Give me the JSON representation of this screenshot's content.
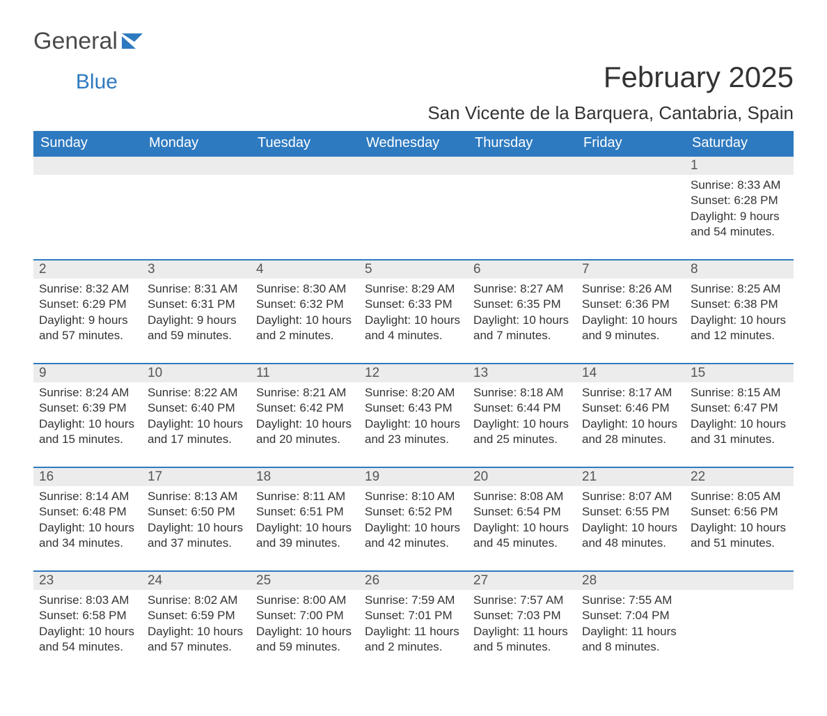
{
  "brand": {
    "word1": "General",
    "word2": "Blue",
    "word1_color": "#4a4a4a",
    "word2_color": "#2e7ac0",
    "flag_color": "#2e7ac0"
  },
  "header": {
    "month_title": "February 2025",
    "location": "San Vicente de la Barquera, Cantabria, Spain"
  },
  "styling": {
    "header_bg": "#2e7ac0",
    "header_fg": "#ffffff",
    "daynum_bg": "#ececec",
    "daynum_fg": "#555555",
    "week_separator": "#2e7ac0",
    "body_text": "#333333",
    "page_bg": "#ffffff",
    "th_fontsize": 20,
    "title_fontsize": 42,
    "location_fontsize": 26,
    "detail_fontsize": 17
  },
  "weekdays": [
    "Sunday",
    "Monday",
    "Tuesday",
    "Wednesday",
    "Thursday",
    "Friday",
    "Saturday"
  ],
  "labels": {
    "sunrise": "Sunrise:",
    "sunset": "Sunset:",
    "daylight": "Daylight:"
  },
  "weeks": [
    [
      null,
      null,
      null,
      null,
      null,
      null,
      {
        "n": "1",
        "sunrise": "8:33 AM",
        "sunset": "6:28 PM",
        "daylight1": "9 hours",
        "daylight2": "and 54 minutes."
      }
    ],
    [
      {
        "n": "2",
        "sunrise": "8:32 AM",
        "sunset": "6:29 PM",
        "daylight1": "9 hours",
        "daylight2": "and 57 minutes."
      },
      {
        "n": "3",
        "sunrise": "8:31 AM",
        "sunset": "6:31 PM",
        "daylight1": "9 hours",
        "daylight2": "and 59 minutes."
      },
      {
        "n": "4",
        "sunrise": "8:30 AM",
        "sunset": "6:32 PM",
        "daylight1": "10 hours",
        "daylight2": "and 2 minutes."
      },
      {
        "n": "5",
        "sunrise": "8:29 AM",
        "sunset": "6:33 PM",
        "daylight1": "10 hours",
        "daylight2": "and 4 minutes."
      },
      {
        "n": "6",
        "sunrise": "8:27 AM",
        "sunset": "6:35 PM",
        "daylight1": "10 hours",
        "daylight2": "and 7 minutes."
      },
      {
        "n": "7",
        "sunrise": "8:26 AM",
        "sunset": "6:36 PM",
        "daylight1": "10 hours",
        "daylight2": "and 9 minutes."
      },
      {
        "n": "8",
        "sunrise": "8:25 AM",
        "sunset": "6:38 PM",
        "daylight1": "10 hours",
        "daylight2": "and 12 minutes."
      }
    ],
    [
      {
        "n": "9",
        "sunrise": "8:24 AM",
        "sunset": "6:39 PM",
        "daylight1": "10 hours",
        "daylight2": "and 15 minutes."
      },
      {
        "n": "10",
        "sunrise": "8:22 AM",
        "sunset": "6:40 PM",
        "daylight1": "10 hours",
        "daylight2": "and 17 minutes."
      },
      {
        "n": "11",
        "sunrise": "8:21 AM",
        "sunset": "6:42 PM",
        "daylight1": "10 hours",
        "daylight2": "and 20 minutes."
      },
      {
        "n": "12",
        "sunrise": "8:20 AM",
        "sunset": "6:43 PM",
        "daylight1": "10 hours",
        "daylight2": "and 23 minutes."
      },
      {
        "n": "13",
        "sunrise": "8:18 AM",
        "sunset": "6:44 PM",
        "daylight1": "10 hours",
        "daylight2": "and 25 minutes."
      },
      {
        "n": "14",
        "sunrise": "8:17 AM",
        "sunset": "6:46 PM",
        "daylight1": "10 hours",
        "daylight2": "and 28 minutes."
      },
      {
        "n": "15",
        "sunrise": "8:15 AM",
        "sunset": "6:47 PM",
        "daylight1": "10 hours",
        "daylight2": "and 31 minutes."
      }
    ],
    [
      {
        "n": "16",
        "sunrise": "8:14 AM",
        "sunset": "6:48 PM",
        "daylight1": "10 hours",
        "daylight2": "and 34 minutes."
      },
      {
        "n": "17",
        "sunrise": "8:13 AM",
        "sunset": "6:50 PM",
        "daylight1": "10 hours",
        "daylight2": "and 37 minutes."
      },
      {
        "n": "18",
        "sunrise": "8:11 AM",
        "sunset": "6:51 PM",
        "daylight1": "10 hours",
        "daylight2": "and 39 minutes."
      },
      {
        "n": "19",
        "sunrise": "8:10 AM",
        "sunset": "6:52 PM",
        "daylight1": "10 hours",
        "daylight2": "and 42 minutes."
      },
      {
        "n": "20",
        "sunrise": "8:08 AM",
        "sunset": "6:54 PM",
        "daylight1": "10 hours",
        "daylight2": "and 45 minutes."
      },
      {
        "n": "21",
        "sunrise": "8:07 AM",
        "sunset": "6:55 PM",
        "daylight1": "10 hours",
        "daylight2": "and 48 minutes."
      },
      {
        "n": "22",
        "sunrise": "8:05 AM",
        "sunset": "6:56 PM",
        "daylight1": "10 hours",
        "daylight2": "and 51 minutes."
      }
    ],
    [
      {
        "n": "23",
        "sunrise": "8:03 AM",
        "sunset": "6:58 PM",
        "daylight1": "10 hours",
        "daylight2": "and 54 minutes."
      },
      {
        "n": "24",
        "sunrise": "8:02 AM",
        "sunset": "6:59 PM",
        "daylight1": "10 hours",
        "daylight2": "and 57 minutes."
      },
      {
        "n": "25",
        "sunrise": "8:00 AM",
        "sunset": "7:00 PM",
        "daylight1": "10 hours",
        "daylight2": "and 59 minutes."
      },
      {
        "n": "26",
        "sunrise": "7:59 AM",
        "sunset": "7:01 PM",
        "daylight1": "11 hours",
        "daylight2": "and 2 minutes."
      },
      {
        "n": "27",
        "sunrise": "7:57 AM",
        "sunset": "7:03 PM",
        "daylight1": "11 hours",
        "daylight2": "and 5 minutes."
      },
      {
        "n": "28",
        "sunrise": "7:55 AM",
        "sunset": "7:04 PM",
        "daylight1": "11 hours",
        "daylight2": "and 8 minutes."
      },
      null
    ]
  ]
}
